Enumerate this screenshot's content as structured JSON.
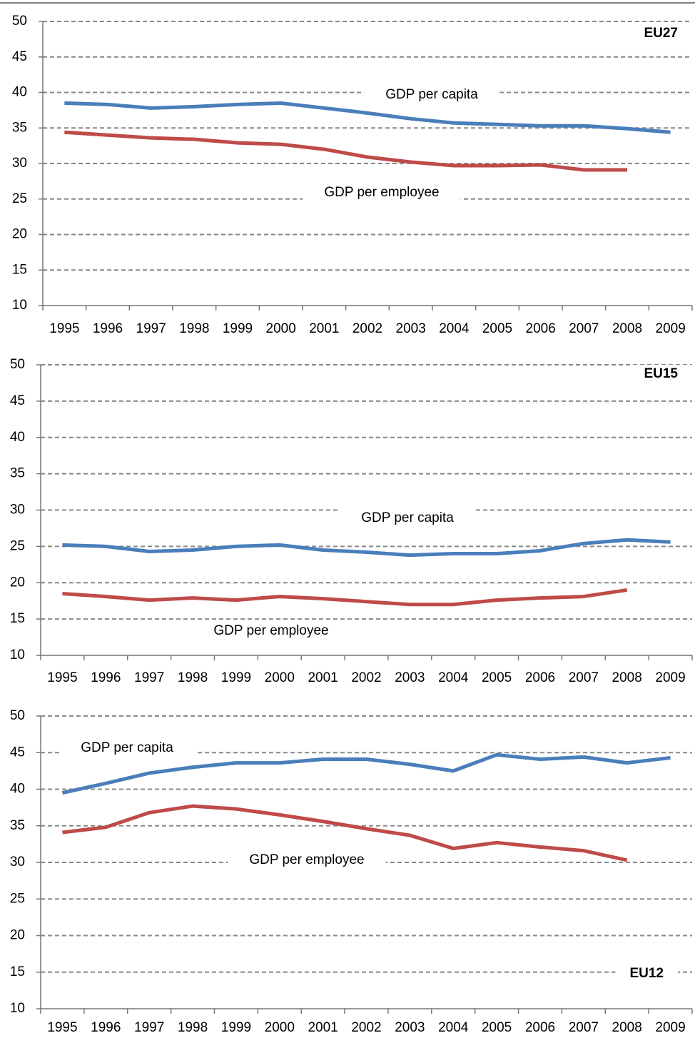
{
  "chart_data": [
    {
      "type": "line",
      "title": "EU27",
      "categories": [
        "1995",
        "1996",
        "1997",
        "1998",
        "1999",
        "2000",
        "2001",
        "2002",
        "2003",
        "2004",
        "2005",
        "2006",
        "2007",
        "2008",
        "2009"
      ],
      "series": [
        {
          "name": "GDP per capita",
          "color": "#4a7ebb",
          "values": [
            38.5,
            38.3,
            37.8,
            38.0,
            38.3,
            38.5,
            37.8,
            37.1,
            36.3,
            35.7,
            35.5,
            35.3,
            35.3,
            34.9,
            34.4
          ]
        },
        {
          "name": "GDP per employee",
          "color": "#be4b48",
          "values": [
            34.4,
            34.0,
            33.6,
            33.4,
            32.9,
            32.7,
            32.0,
            30.9,
            30.2,
            29.7,
            29.7,
            29.8,
            29.1,
            29.1,
            null
          ]
        }
      ],
      "ylim": [
        10,
        50
      ],
      "yticks": [
        10,
        15,
        20,
        25,
        30,
        35,
        40,
        45,
        50
      ],
      "grid": true
    },
    {
      "type": "line",
      "title": "EU15",
      "categories": [
        "1995",
        "1996",
        "1997",
        "1998",
        "1999",
        "2000",
        "2001",
        "2002",
        "2003",
        "2004",
        "2005",
        "2006",
        "2007",
        "2008",
        "2009"
      ],
      "series": [
        {
          "name": "GDP per capita",
          "color": "#4a7ebb",
          "values": [
            25.2,
            25.0,
            24.3,
            24.5,
            25.0,
            25.2,
            24.5,
            24.2,
            23.8,
            24.0,
            24.0,
            24.4,
            25.4,
            25.9,
            25.6
          ]
        },
        {
          "name": "GDP per employee",
          "color": "#be4b48",
          "values": [
            18.5,
            18.1,
            17.6,
            17.9,
            17.6,
            18.1,
            17.8,
            17.4,
            17.0,
            17.0,
            17.6,
            17.9,
            18.1,
            19.0,
            null
          ]
        }
      ],
      "ylim": [
        10,
        50
      ],
      "yticks": [
        10,
        15,
        20,
        25,
        30,
        35,
        40,
        45,
        50
      ],
      "grid": true
    },
    {
      "type": "line",
      "title": "EU12",
      "categories": [
        "1995",
        "1996",
        "1997",
        "1998",
        "1999",
        "2000",
        "2001",
        "2002",
        "2003",
        "2004",
        "2005",
        "2006",
        "2007",
        "2008",
        "2009"
      ],
      "series": [
        {
          "name": "GDP per capita",
          "color": "#4a7ebb",
          "values": [
            39.5,
            40.8,
            42.2,
            43.0,
            43.6,
            43.6,
            44.1,
            44.1,
            43.4,
            42.5,
            44.7,
            44.1,
            44.4,
            43.6,
            44.3
          ]
        },
        {
          "name": "GDP per employee",
          "color": "#be4b48",
          "values": [
            34.1,
            34.8,
            36.8,
            37.7,
            37.3,
            36.5,
            35.6,
            34.6,
            33.7,
            31.9,
            32.7,
            32.1,
            31.6,
            30.3,
            null
          ]
        }
      ],
      "ylim": [
        10,
        50
      ],
      "yticks": [
        10,
        15,
        20,
        25,
        30,
        35,
        40,
        45,
        50
      ],
      "grid": true
    }
  ]
}
